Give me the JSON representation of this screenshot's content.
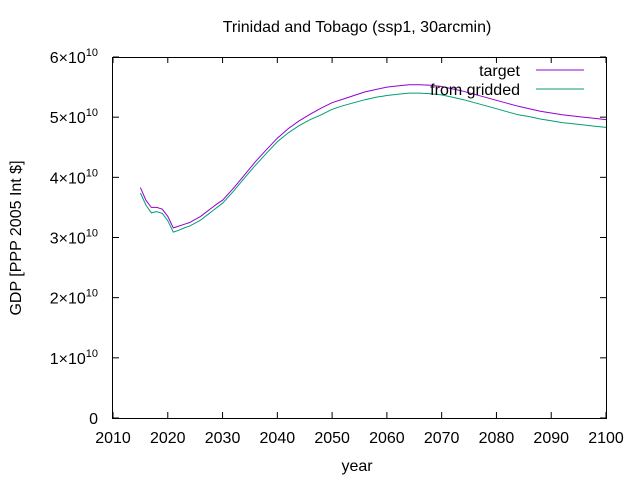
{
  "chart_data": {
    "type": "line",
    "title": "Trinidad and Tobago (ssp1, 30arcmin)",
    "xlabel": "year",
    "ylabel": "GDP [PPP 2005 Int $]",
    "xlim": [
      2010,
      2100
    ],
    "ylim": [
      0,
      60000000000
    ],
    "x_ticks": [
      2010,
      2020,
      2030,
      2040,
      2050,
      2060,
      2070,
      2080,
      2090,
      2100
    ],
    "y_ticks": [
      {
        "value": 0,
        "mantissa": "0",
        "exponent": ""
      },
      {
        "value": 10000000000,
        "mantissa": "1×10",
        "exponent": "10"
      },
      {
        "value": 20000000000,
        "mantissa": "2×10",
        "exponent": "10"
      },
      {
        "value": 30000000000,
        "mantissa": "3×10",
        "exponent": "10"
      },
      {
        "value": 40000000000,
        "mantissa": "4×10",
        "exponent": "10"
      },
      {
        "value": 50000000000,
        "mantissa": "5×10",
        "exponent": "10"
      },
      {
        "value": 60000000000,
        "mantissa": "6×10",
        "exponent": "10"
      }
    ],
    "grid": false,
    "legend_position": "top-right",
    "series": [
      {
        "name": "target",
        "color": "#9400d3",
        "x": [
          2015,
          2016,
          2017,
          2018,
          2019,
          2020,
          2021,
          2022,
          2023,
          2024,
          2025,
          2026,
          2027,
          2028,
          2029,
          2030,
          2032,
          2034,
          2036,
          2038,
          2040,
          2042,
          2044,
          2046,
          2048,
          2050,
          2052,
          2054,
          2056,
          2058,
          2060,
          2062,
          2064,
          2066,
          2068,
          2070,
          2072,
          2074,
          2076,
          2078,
          2080,
          2082,
          2084,
          2086,
          2088,
          2090,
          2092,
          2094,
          2096,
          2098,
          2100
        ],
        "values": [
          38300000000,
          36200000000,
          35000000000,
          35000000000,
          34700000000,
          33500000000,
          31600000000,
          31900000000,
          32200000000,
          32500000000,
          33000000000,
          33500000000,
          34200000000,
          34900000000,
          35600000000,
          36200000000,
          38200000000,
          40400000000,
          42600000000,
          44600000000,
          46500000000,
          48100000000,
          49400000000,
          50500000000,
          51500000000,
          52400000000,
          53000000000,
          53600000000,
          54200000000,
          54600000000,
          55000000000,
          55200000000,
          55400000000,
          55400000000,
          55300000000,
          55100000000,
          54700000000,
          54300000000,
          53800000000,
          53300000000,
          52800000000,
          52300000000,
          51800000000,
          51400000000,
          51000000000,
          50700000000,
          50400000000,
          50200000000,
          50000000000,
          49800000000,
          49600000000
        ]
      },
      {
        "name": "from gridded",
        "color": "#009e73",
        "x": [
          2015,
          2016,
          2017,
          2018,
          2019,
          2020,
          2021,
          2022,
          2023,
          2024,
          2025,
          2026,
          2027,
          2028,
          2029,
          2030,
          2032,
          2034,
          2036,
          2038,
          2040,
          2042,
          2044,
          2046,
          2048,
          2050,
          2052,
          2054,
          2056,
          2058,
          2060,
          2062,
          2064,
          2066,
          2068,
          2070,
          2072,
          2074,
          2076,
          2078,
          2080,
          2082,
          2084,
          2086,
          2088,
          2090,
          2092,
          2094,
          2096,
          2098,
          2100
        ],
        "values": [
          37400000000,
          35400000000,
          34100000000,
          34300000000,
          34000000000,
          32800000000,
          30900000000,
          31200000000,
          31600000000,
          31900000000,
          32400000000,
          32900000000,
          33600000000,
          34300000000,
          35000000000,
          35700000000,
          37700000000,
          39900000000,
          42000000000,
          44000000000,
          45900000000,
          47400000000,
          48600000000,
          49600000000,
          50400000000,
          51300000000,
          51900000000,
          52400000000,
          52900000000,
          53300000000,
          53600000000,
          53800000000,
          54000000000,
          54000000000,
          53900000000,
          53700000000,
          53300000000,
          52900000000,
          52400000000,
          51900000000,
          51400000000,
          50900000000,
          50400000000,
          50100000000,
          49700000000,
          49400000000,
          49100000000,
          48900000000,
          48700000000,
          48500000000,
          48300000000
        ]
      }
    ]
  }
}
